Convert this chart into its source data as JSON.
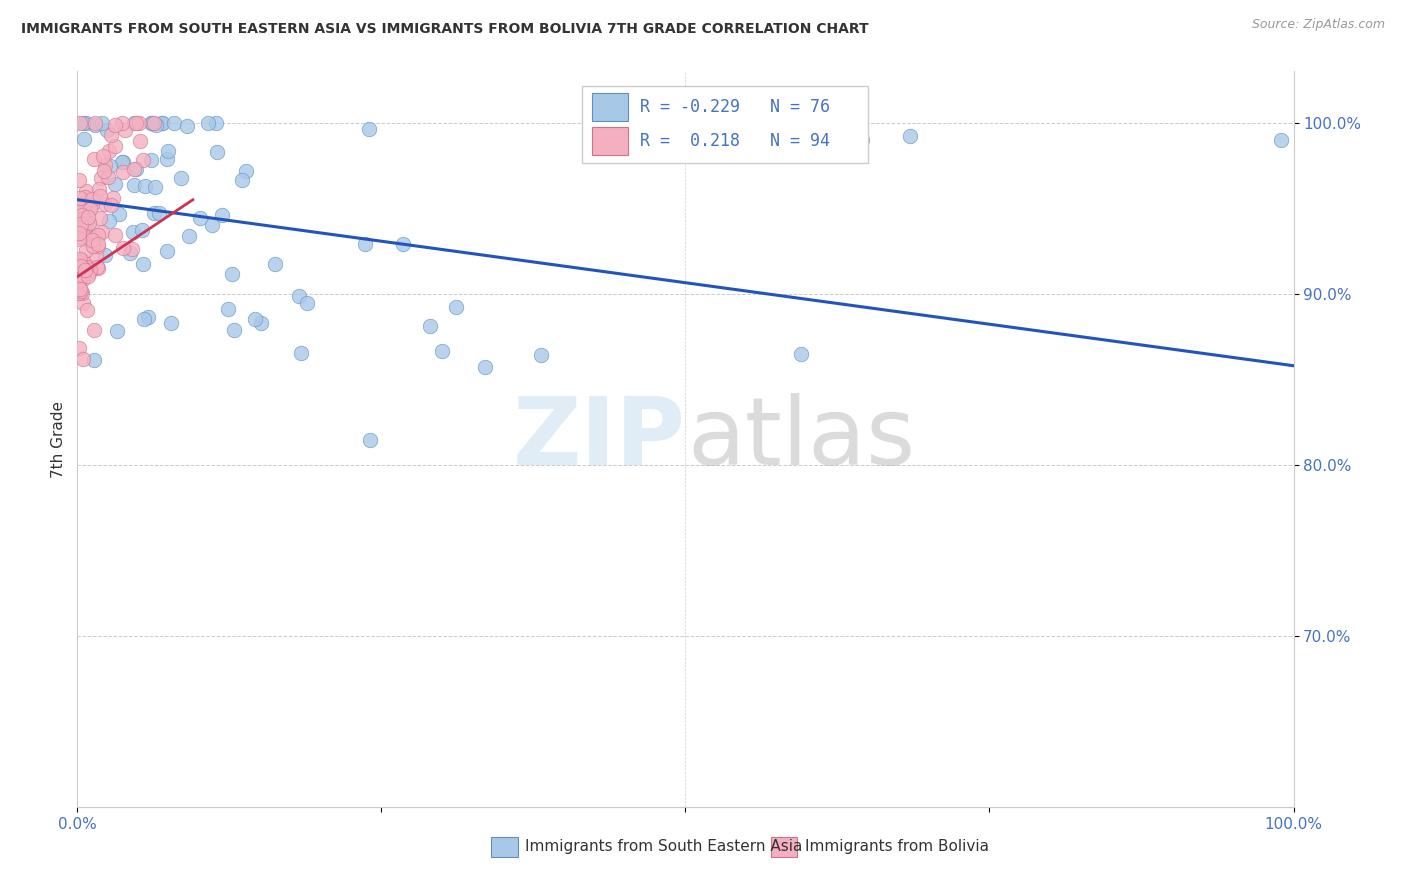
{
  "title": "IMMIGRANTS FROM SOUTH EASTERN ASIA VS IMMIGRANTS FROM BOLIVIA 7TH GRADE CORRELATION CHART",
  "source": "Source: ZipAtlas.com",
  "ylabel": "7th Grade",
  "watermark_zip": "ZIP",
  "watermark_atlas": "atlas",
  "legend_blue_r": "-0.229",
  "legend_blue_n": "76",
  "legend_pink_r": "0.218",
  "legend_pink_n": "94",
  "blue_color": "#a8c8e8",
  "pink_color": "#f4b0c0",
  "blue_edge_color": "#6090c0",
  "pink_edge_color": "#d07090",
  "blue_line_color": "#2255bb",
  "pink_line_color": "#cc3355",
  "axis_color": "#4472c4",
  "text_color": "#333333",
  "grid_color": "#cccccc",
  "background_color": "#ffffff",
  "xlim": [
    0.0,
    1.0
  ],
  "ylim": [
    0.6,
    1.03
  ],
  "yticks": [
    0.7,
    0.8,
    0.9,
    1.0
  ],
  "ytick_labels": [
    "70.0%",
    "80.0%",
    "90.0%",
    "100.0%"
  ],
  "xtick_labels": [
    "0.0%",
    "100.0%"
  ]
}
